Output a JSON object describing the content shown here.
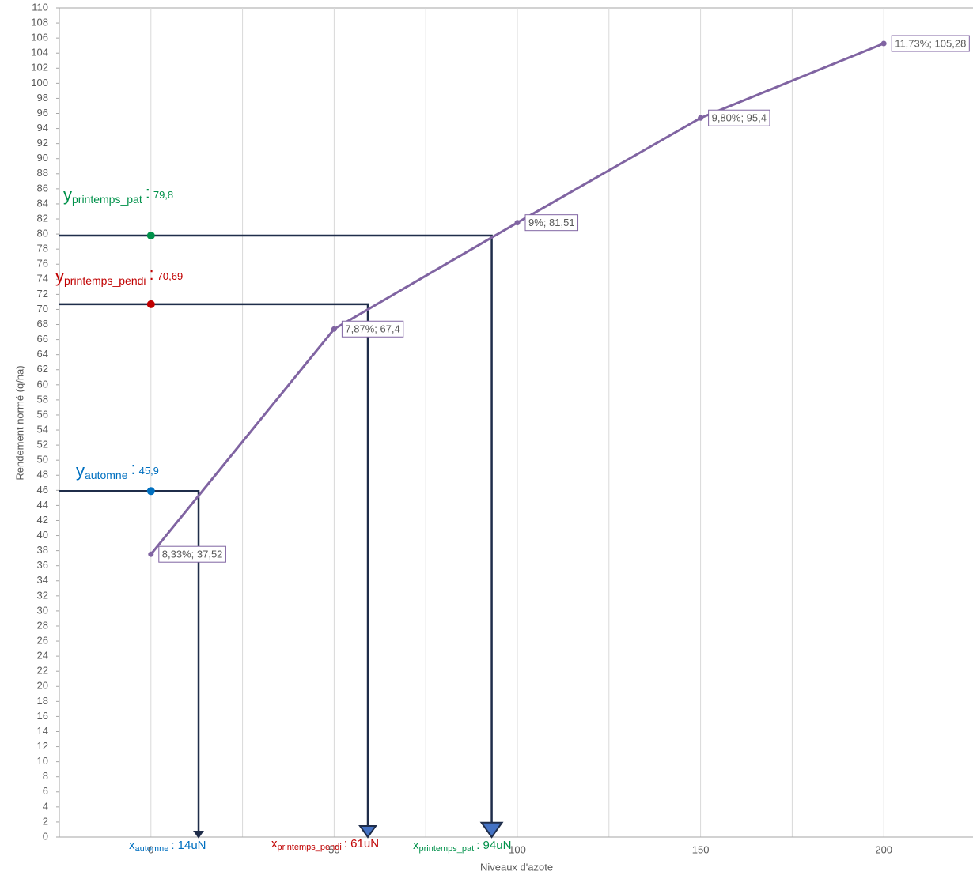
{
  "chart_data": {
    "type": "line",
    "x_label": "Niveaux d'azote",
    "y_label": "Rendement normé (q/ha)",
    "xlim": [
      -25,
      225
    ],
    "xticks": [
      0,
      50,
      100,
      150,
      200
    ],
    "minor_xticks": [
      -25,
      25,
      75,
      125,
      175,
      225
    ],
    "ylim": [
      0,
      110
    ],
    "yticks": [
      0,
      2,
      4,
      6,
      8,
      10,
      12,
      14,
      16,
      18,
      20,
      22,
      24,
      26,
      28,
      30,
      32,
      34,
      36,
      38,
      40,
      42,
      44,
      46,
      48,
      50,
      52,
      54,
      56,
      58,
      60,
      62,
      64,
      66,
      68,
      70,
      72,
      74,
      76,
      78,
      80,
      82,
      84,
      86,
      88,
      90,
      92,
      94,
      96,
      98,
      100,
      102,
      104,
      106,
      108,
      110
    ],
    "grid": true,
    "series": [
      {
        "color": "#8064a2",
        "x": [
          0,
          50,
          100,
          150,
          200
        ],
        "values": [
          37.52,
          67.4,
          81.51,
          95.4,
          105.28
        ],
        "value_labels": [
          "8,33%; 37,52",
          "7,87%; 67,4",
          "9%; 81,51",
          "9,80%; 95,4",
          "11,73%; 105,28"
        ]
      }
    ],
    "annotations": [
      {
        "symbol": "y",
        "subscript": "automne",
        "separator": ":",
        "text": "45,9",
        "y": 45.9,
        "x": 13,
        "color": "#0070c0",
        "x_label": {
          "symbol": "x",
          "subscript": "automne",
          "text": ": 14uN"
        }
      },
      {
        "symbol": "y",
        "subscript": "printemps_pendi",
        "separator": ":",
        "text": "70,69",
        "y": 70.69,
        "x": 59.2,
        "color": "#c00000",
        "x_label": {
          "symbol": "x",
          "subscript": "printemps_pendi",
          "text": ": 61uN"
        }
      },
      {
        "symbol": "y",
        "subscript": "printemps_pat",
        "separator": ":",
        "text": "79,8",
        "y": 79.8,
        "x": 93,
        "color": "#00914a",
        "x_label": {
          "symbol": "x",
          "subscript": "printemps_pat",
          "text": ": 94uN"
        }
      }
    ]
  }
}
